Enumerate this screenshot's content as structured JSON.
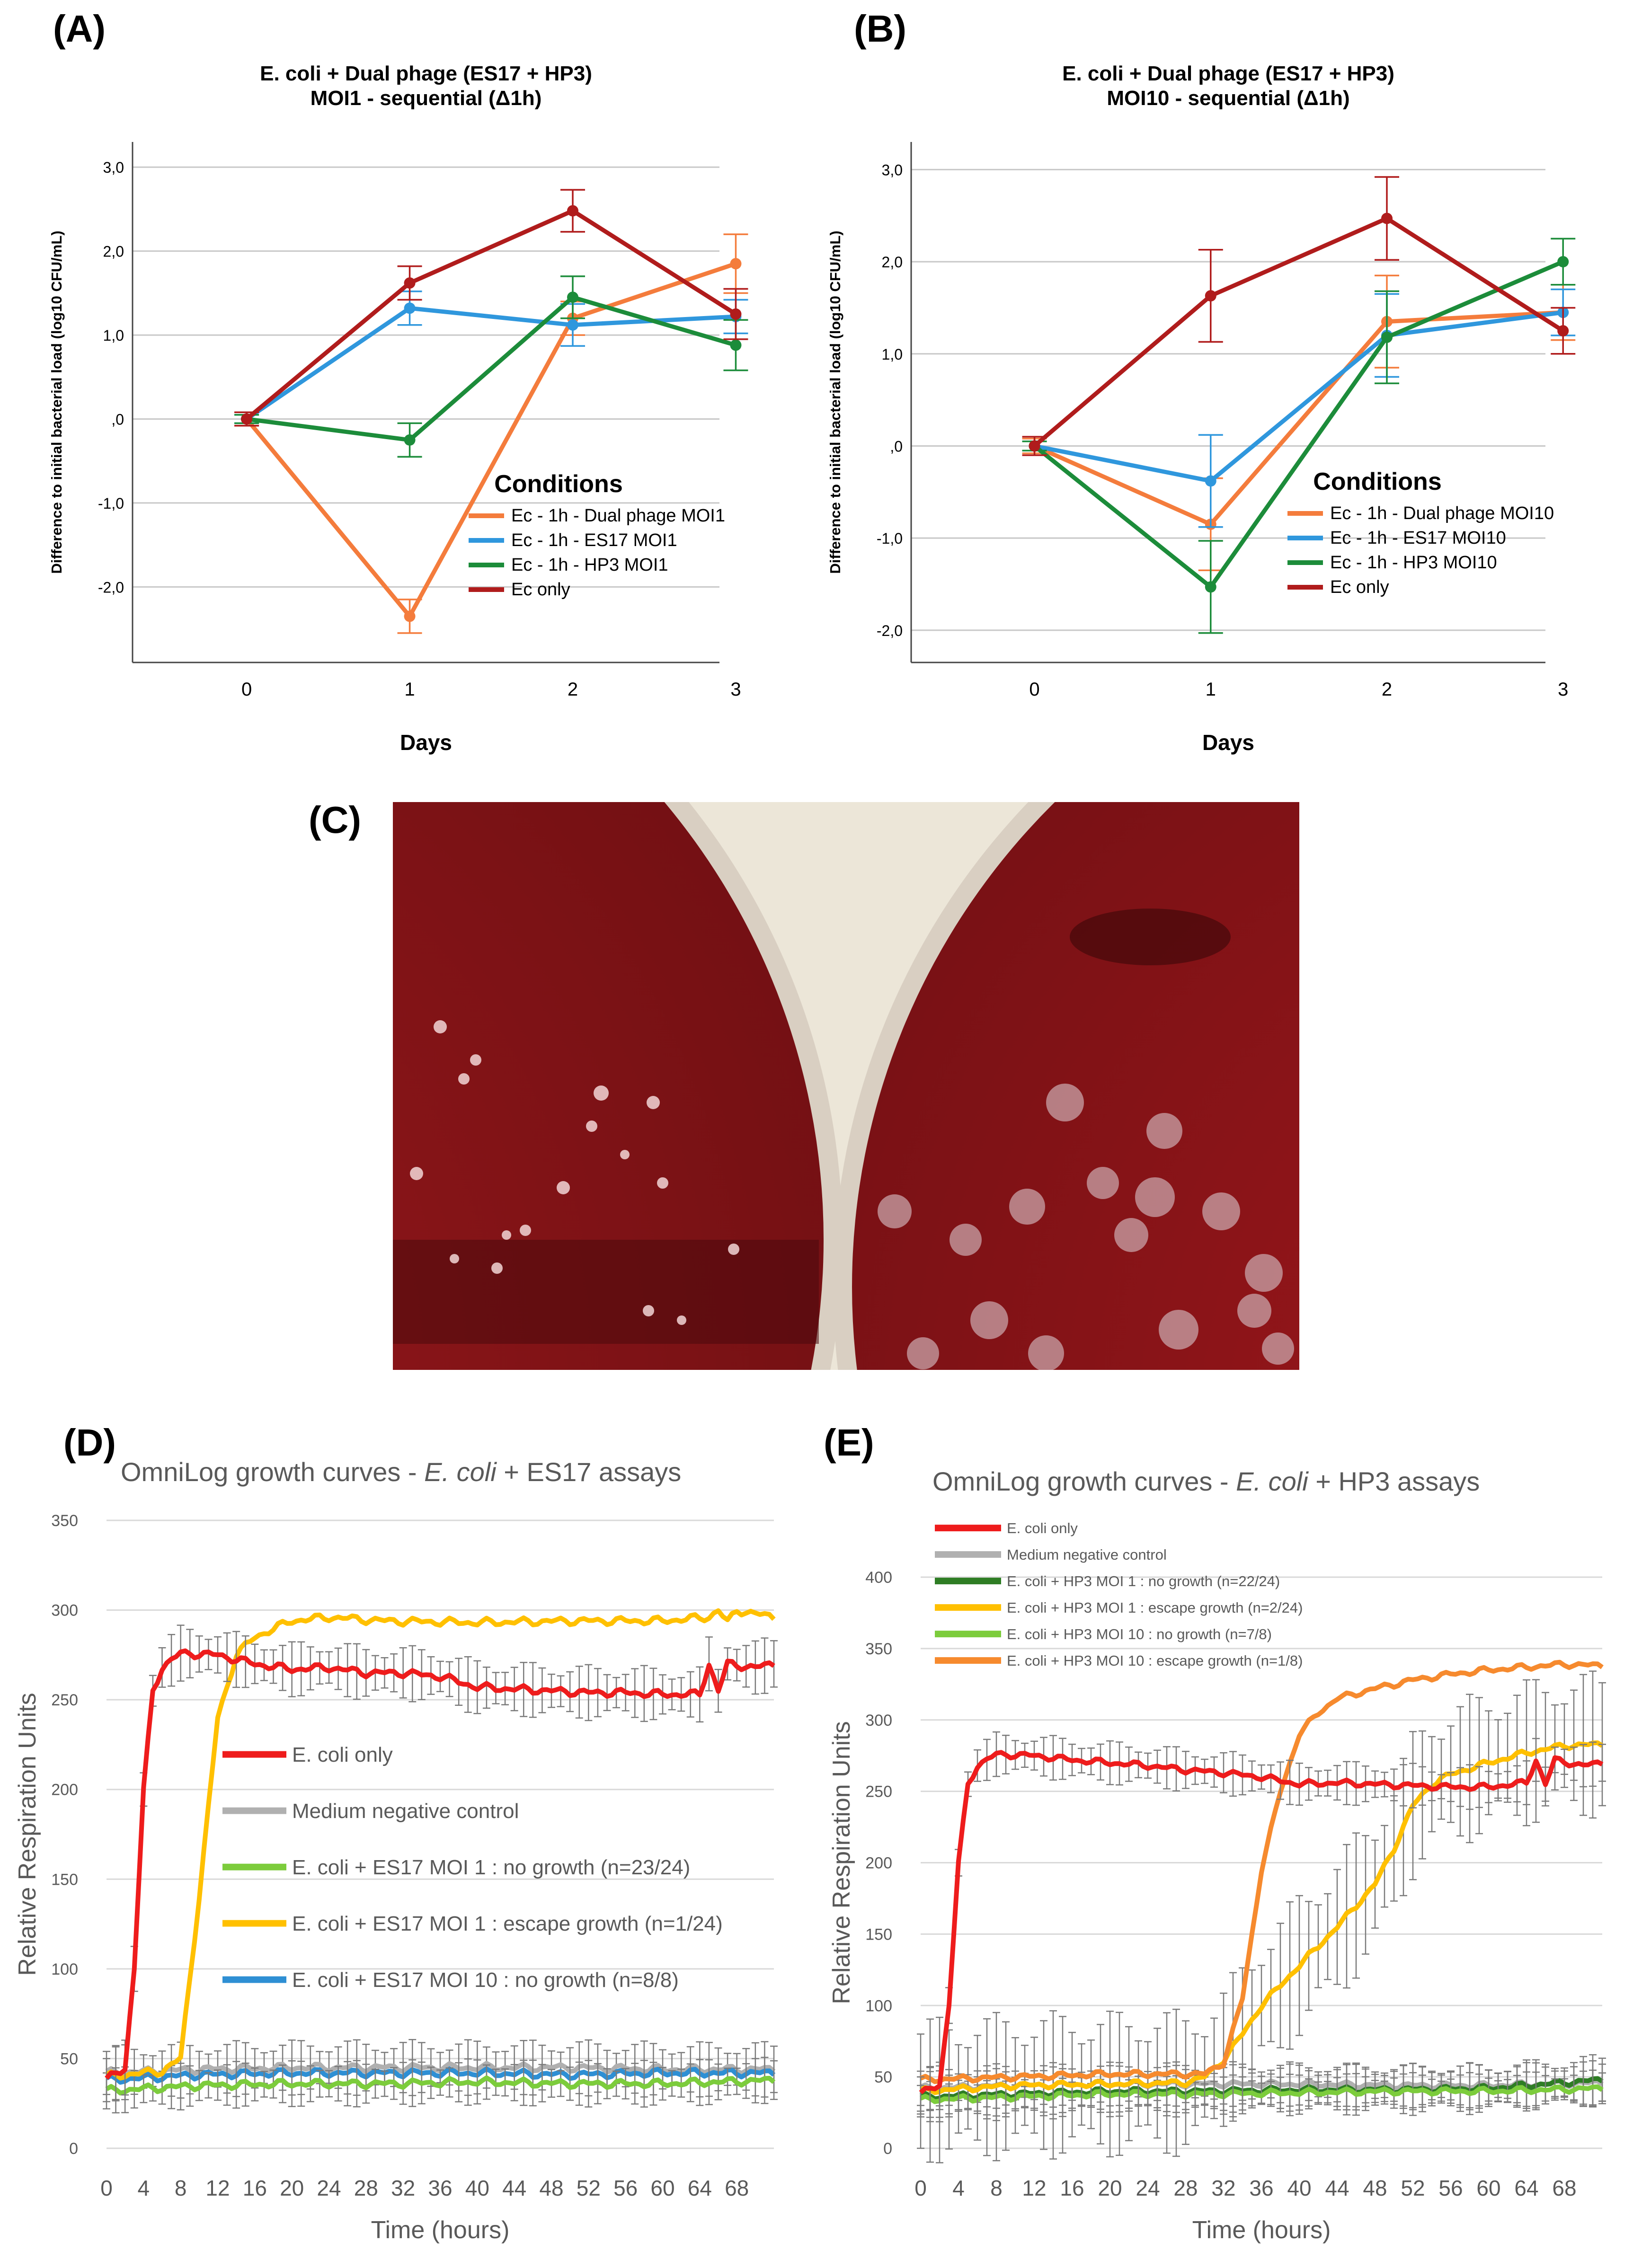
{
  "panels": {
    "A": "(A)",
    "B": "(B)",
    "C": "(C)",
    "D": "(D)",
    "E": "(E)"
  },
  "photo": {
    "description_icon": "petri-dish-icon",
    "colors": {
      "background": "#ece6d8",
      "agar": "#8c1418",
      "agar_dark": "#5e0d10"
    }
  },
  "chart_data": [
    {
      "id": "A",
      "type": "line",
      "title": "E. coli + Dual phage (ES17 + HP3)",
      "subtitle": "MOI1 - sequential (Δ1h)",
      "xlabel": "Days",
      "ylabel": "Difference to initial bacterial load (log10 CFU/mL)",
      "x": [
        0,
        1,
        2,
        3
      ],
      "x_ticks": [
        "0",
        "1",
        "2",
        "3"
      ],
      "y_ticks": [
        {
          "v": 3,
          "label": "3,0"
        },
        {
          "v": 2,
          "label": "2,0"
        },
        {
          "v": 1,
          "label": "1,0"
        },
        {
          "v": 0,
          "label": ",0"
        },
        {
          "v": -1,
          "label": "-1,0"
        },
        {
          "v": -2,
          "label": "-2,0"
        }
      ],
      "ylim": [
        -2.9,
        3.3
      ],
      "legend_title": "Conditions",
      "legend_position": "bottom-right",
      "series": [
        {
          "name": "Ec - 1h - Dual phage MOI1",
          "color": "#f47c3c",
          "values": [
            0.0,
            -2.35,
            1.2,
            1.85
          ],
          "err": [
            0.08,
            0.2,
            0.2,
            0.35
          ]
        },
        {
          "name": "Ec - 1h - ES17 MOI1",
          "color": "#2f97dd",
          "values": [
            0.0,
            1.32,
            1.12,
            1.22
          ],
          "err": [
            0.05,
            0.2,
            0.25,
            0.2
          ]
        },
        {
          "name": "Ec - 1h - HP3 MOI1",
          "color": "#1c8c3a",
          "values": [
            0.0,
            -0.25,
            1.45,
            0.88
          ],
          "err": [
            0.05,
            0.2,
            0.25,
            0.3
          ]
        },
        {
          "name": "Ec only",
          "color": "#b01c1c",
          "values": [
            0.0,
            1.62,
            2.48,
            1.25
          ],
          "err": [
            0.08,
            0.2,
            0.25,
            0.3
          ]
        }
      ]
    },
    {
      "id": "B",
      "type": "line",
      "title": "E. coli + Dual phage (ES17 + HP3)",
      "subtitle": "MOI10 - sequential (Δ1h)",
      "xlabel": "Days",
      "ylabel": "Difference to initial bacterial load (log10 CFU/mL)",
      "x": [
        0,
        1,
        2,
        3
      ],
      "x_ticks": [
        "0",
        "1",
        "2",
        "3"
      ],
      "y_ticks": [
        {
          "v": 3,
          "label": "3,0"
        },
        {
          "v": 2,
          "label": "2,0"
        },
        {
          "v": 1,
          "label": "1,0"
        },
        {
          "v": 0,
          "label": ",0"
        },
        {
          "v": -1,
          "label": "-1,0"
        },
        {
          "v": -2,
          "label": "-2,0"
        }
      ],
      "ylim": [
        -2.35,
        3.3
      ],
      "legend_title": "Conditions",
      "legend_position": "bottom-right",
      "series": [
        {
          "name": "Ec - 1h - Dual phage MOI10",
          "color": "#f47c3c",
          "values": [
            0.0,
            -0.85,
            1.35,
            1.45
          ],
          "err": [
            0.08,
            0.5,
            0.5,
            0.3
          ]
        },
        {
          "name": "Ec - 1h - ES17 MOI10",
          "color": "#2f97dd",
          "values": [
            0.0,
            -0.38,
            1.2,
            1.45
          ],
          "err": [
            0.05,
            0.5,
            0.45,
            0.25
          ]
        },
        {
          "name": "Ec - 1h - HP3 MOI10",
          "color": "#1c8c3a",
          "values": [
            0.0,
            -1.53,
            1.18,
            2.0
          ],
          "err": [
            0.05,
            0.5,
            0.5,
            0.25
          ]
        },
        {
          "name": "Ec only",
          "color": "#b01c1c",
          "values": [
            0.0,
            1.63,
            2.47,
            1.25
          ],
          "err": [
            0.1,
            0.5,
            0.45,
            0.25
          ]
        }
      ]
    },
    {
      "id": "D",
      "type": "line",
      "title_prefix": "OmniLog growth curves - ",
      "title_italic": "E. coli",
      "title_suffix": " + ES17 assays",
      "xlabel": "Time (hours)",
      "ylabel": "Relative Respiration Units",
      "xlim": [
        0,
        72
      ],
      "ylim": [
        0,
        350
      ],
      "x_ticks": [
        0,
        4,
        8,
        12,
        16,
        20,
        24,
        28,
        32,
        36,
        40,
        44,
        48,
        52,
        56,
        60,
        64,
        68
      ],
      "y_ticks": [
        0,
        50,
        100,
        150,
        200,
        250,
        300,
        350
      ],
      "legend_position": "center",
      "series": [
        {
          "name": "Medium negative control",
          "color": "#b0b0b0",
          "errbar": 12,
          "points": [
            [
              0,
              42
            ],
            [
              10,
              44
            ],
            [
              20,
              45
            ],
            [
              30,
              45
            ],
            [
              40,
              45
            ],
            [
              50,
              45
            ],
            [
              60,
              44
            ],
            [
              72,
              44
            ]
          ]
        },
        {
          "name": "E. coli + ES17 MOI 10 : no growth (n=8/8)",
          "color": "#2e8fd4",
          "errbar": 0,
          "points": [
            [
              0,
              38
            ],
            [
              10,
              41
            ],
            [
              20,
              42
            ],
            [
              30,
              42
            ],
            [
              40,
              42
            ],
            [
              50,
              41
            ],
            [
              60,
              42
            ],
            [
              72,
              42
            ]
          ]
        },
        {
          "name": "E. coli + ES17 MOI 1 : no growth (n=23/24)",
          "color": "#7ccc3c",
          "errbar": 10,
          "points": [
            [
              0,
              32
            ],
            [
              10,
              35
            ],
            [
              20,
              36
            ],
            [
              30,
              36
            ],
            [
              40,
              37
            ],
            [
              50,
              36
            ],
            [
              60,
              36
            ],
            [
              72,
              38
            ]
          ]
        },
        {
          "name": "E. coli + ES17 MOI 1 : escape growth (n=1/24)",
          "color": "#ffc000",
          "errbar": 0,
          "points": [
            [
              0,
              40
            ],
            [
              6,
              43
            ],
            [
              8,
              50
            ],
            [
              10,
              140
            ],
            [
              12,
              240
            ],
            [
              14,
              275
            ],
            [
              16,
              285
            ],
            [
              20,
              294
            ],
            [
              24,
              296
            ],
            [
              30,
              294
            ],
            [
              40,
              293
            ],
            [
              50,
              294
            ],
            [
              60,
              294
            ],
            [
              65,
              296
            ],
            [
              66,
              300
            ],
            [
              67,
              293
            ],
            [
              68,
              300
            ],
            [
              72,
              296
            ]
          ]
        },
        {
          "name": "E. coli only",
          "color": "#ee1c1c",
          "errbar": 12,
          "points": [
            [
              0,
              38
            ],
            [
              2,
              45
            ],
            [
              3,
              100
            ],
            [
              4,
              200
            ],
            [
              5,
              255
            ],
            [
              6,
              268
            ],
            [
              8,
              276
            ],
            [
              12,
              275
            ],
            [
              16,
              270
            ],
            [
              20,
              267
            ],
            [
              24,
              268
            ],
            [
              28,
              265
            ],
            [
              32,
              265
            ],
            [
              36,
              263
            ],
            [
              40,
              257
            ],
            [
              44,
              256
            ],
            [
              48,
              255
            ],
            [
              52,
              254
            ],
            [
              56,
              254
            ],
            [
              60,
              253
            ],
            [
              64,
              253
            ],
            [
              65,
              270
            ],
            [
              66,
              255
            ],
            [
              67,
              270
            ],
            [
              70,
              268
            ],
            [
              72,
              270
            ]
          ]
        }
      ],
      "legend_order": [
        4,
        0,
        2,
        3,
        1
      ]
    },
    {
      "id": "E",
      "type": "line",
      "title_prefix": "OmniLog growth curves - ",
      "title_italic": "E. coli",
      "title_suffix": " + HP3 assays",
      "xlabel": "Time (hours)",
      "ylabel": "Relative Respiration Units",
      "xlim": [
        0,
        72
      ],
      "ylim": [
        0,
        400
      ],
      "x_ticks": [
        0,
        4,
        8,
        12,
        16,
        20,
        24,
        28,
        32,
        36,
        40,
        44,
        48,
        52,
        56,
        60,
        64,
        68
      ],
      "y_ticks": [
        0,
        50,
        100,
        150,
        200,
        250,
        300,
        350,
        400
      ],
      "legend_position": "top-left",
      "series": [
        {
          "name": "Medium negative control",
          "color": "#b0b0b0",
          "errbar": 12,
          "points": [
            [
              0,
              42
            ],
            [
              10,
              44
            ],
            [
              20,
              45
            ],
            [
              30,
              45
            ],
            [
              40,
              45
            ],
            [
              50,
              44
            ],
            [
              60,
              44
            ],
            [
              72,
              46
            ]
          ]
        },
        {
          "name": "E. coli + HP3 MOI 1 : no growth (n=22/24)",
          "color": "#2e7d24",
          "errbar": 14,
          "points": [
            [
              0,
              36
            ],
            [
              10,
              38
            ],
            [
              20,
              40
            ],
            [
              30,
              40
            ],
            [
              40,
              41
            ],
            [
              50,
              41
            ],
            [
              60,
              42
            ],
            [
              72,
              48
            ]
          ]
        },
        {
          "name": "E. coli + HP3 MOI 10 : no growth (n=7/8)",
          "color": "#7ccc3c",
          "errbar": 10,
          "points": [
            [
              0,
              34
            ],
            [
              10,
              36
            ],
            [
              20,
              38
            ],
            [
              30,
              38
            ],
            [
              40,
              39
            ],
            [
              50,
              40
            ],
            [
              60,
              40
            ],
            [
              72,
              42
            ]
          ]
        },
        {
          "name": "E. coli + HP3 MOI 1 : escape growth (n=2/24)",
          "color": "#ffc000",
          "errbar": 40,
          "points": [
            [
              0,
              40
            ],
            [
              10,
              44
            ],
            [
              20,
              45
            ],
            [
              28,
              46
            ],
            [
              30,
              50
            ],
            [
              32,
              62
            ],
            [
              34,
              80
            ],
            [
              36,
              100
            ],
            [
              40,
              128
            ],
            [
              44,
              155
            ],
            [
              48,
              185
            ],
            [
              50,
              210
            ],
            [
              52,
              240
            ],
            [
              54,
              255
            ],
            [
              56,
              262
            ],
            [
              60,
              270
            ],
            [
              64,
              277
            ],
            [
              68,
              282
            ],
            [
              72,
              283
            ]
          ]
        },
        {
          "name": "E. coli + HP3 MOI 10 : escape growth (n=1/8)",
          "color": "#f68a2e",
          "errbar": 0,
          "points": [
            [
              0,
              48
            ],
            [
              10,
              50
            ],
            [
              20,
              52
            ],
            [
              30,
              52
            ],
            [
              32,
              60
            ],
            [
              34,
              105
            ],
            [
              36,
              195
            ],
            [
              38,
              250
            ],
            [
              40,
              290
            ],
            [
              42,
              305
            ],
            [
              44,
              315
            ],
            [
              48,
              322
            ],
            [
              52,
              328
            ],
            [
              56,
              332
            ],
            [
              60,
              335
            ],
            [
              64,
              337
            ],
            [
              68,
              339
            ],
            [
              72,
              338
            ]
          ]
        },
        {
          "name": "E. coli only",
          "color": "#ee1c1c",
          "errbar": 12,
          "points": [
            [
              0,
              38
            ],
            [
              2,
              45
            ],
            [
              3,
              100
            ],
            [
              4,
              200
            ],
            [
              5,
              255
            ],
            [
              6,
              268
            ],
            [
              8,
              276
            ],
            [
              12,
              275
            ],
            [
              16,
              272
            ],
            [
              20,
              270
            ],
            [
              24,
              268
            ],
            [
              28,
              265
            ],
            [
              32,
              263
            ],
            [
              36,
              260
            ],
            [
              40,
              255
            ],
            [
              44,
              256
            ],
            [
              48,
              255
            ],
            [
              52,
              254
            ],
            [
              56,
              253
            ],
            [
              60,
              253
            ],
            [
              64,
              256
            ],
            [
              65,
              272
            ],
            [
              66,
              255
            ],
            [
              67,
              272
            ],
            [
              70,
              268
            ],
            [
              72,
              270
            ]
          ]
        }
      ],
      "legend_order": [
        5,
        0,
        1,
        3,
        2,
        4
      ]
    }
  ]
}
